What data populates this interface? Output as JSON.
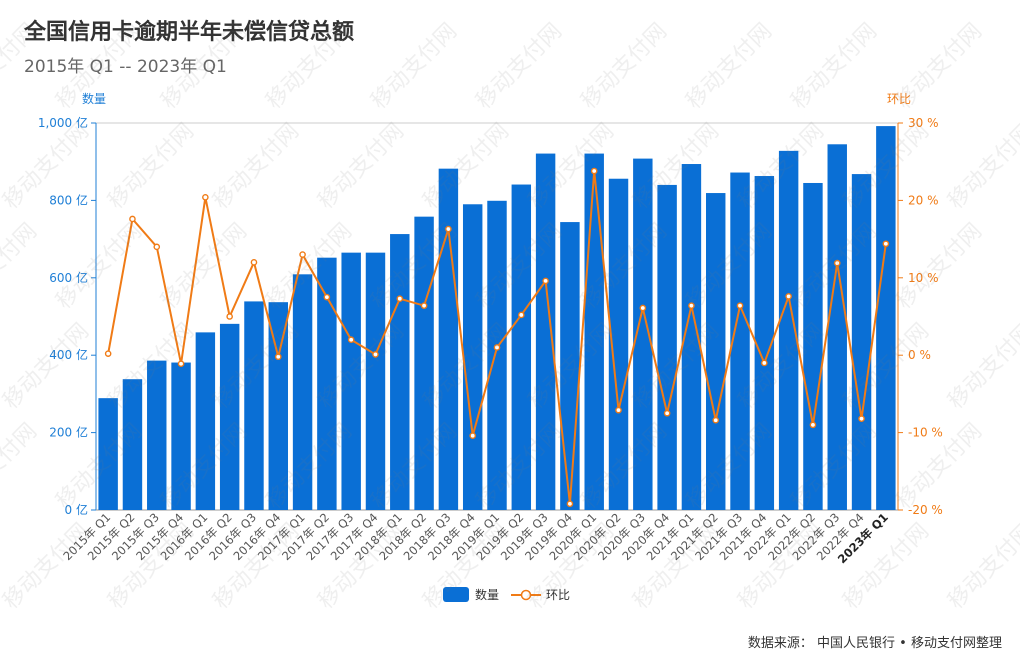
{
  "title": "全国信用卡逾期半年未偿信贷总额",
  "subtitle": "2015年 Q1 -- 2023年 Q1",
  "source": "数据来源：  中国人民银行 • 移动支付网整理",
  "watermark": "移动支付网",
  "colors": {
    "bar": "#0a6fd5",
    "line": "#f07b16",
    "left_axis": "#1f7fd6",
    "right_axis": "#f07b16"
  },
  "chart_data": {
    "type": "bar",
    "categories": [
      "2015年 Q1",
      "2015年 Q2",
      "2015年 Q3",
      "2015年 Q4",
      "2016年 Q1",
      "2016年 Q2",
      "2016年 Q3",
      "2016年 Q4",
      "2017年 Q1",
      "2017年 Q2",
      "2017年 Q3",
      "2017年 Q4",
      "2018年 Q1",
      "2018年 Q2",
      "2018年 Q3",
      "2018年 Q4",
      "2019年 Q1",
      "2019年 Q2",
      "2019年 Q3",
      "2019年 Q4",
      "2020年 Q1",
      "2020年 Q2",
      "2020年 Q3",
      "2020年 Q4",
      "2021年 Q1",
      "2021年 Q2",
      "2021年 Q3",
      "2021年 Q4",
      "2022年 Q1",
      "2022年 Q2",
      "2022年 Q3",
      "2022年 Q4",
      "2023年 Q1"
    ],
    "series": [
      {
        "name": "数量",
        "type": "bar",
        "axis": "left",
        "values": [
          289,
          338,
          386,
          381,
          459,
          481,
          539,
          537,
          609,
          652,
          665,
          665,
          713,
          758,
          882,
          790,
          799,
          841,
          921,
          744,
          921,
          856,
          908,
          840,
          894,
          819,
          872,
          863,
          928,
          845,
          945,
          868,
          992
        ]
      },
      {
        "name": "环比",
        "type": "line",
        "axis": "right",
        "values": [
          0.2,
          17.6,
          14.0,
          -1.1,
          20.4,
          5.0,
          12.0,
          -0.2,
          13.0,
          7.5,
          2.0,
          0.1,
          7.3,
          6.4,
          16.3,
          -10.4,
          1.0,
          5.2,
          9.6,
          -19.2,
          23.8,
          -7.1,
          6.1,
          -7.5,
          6.4,
          -8.4,
          6.4,
          -1.0,
          7.6,
          -9.0,
          11.9,
          -8.2,
          14.4
        ]
      }
    ],
    "y_left": {
      "label": "数量",
      "min": 0,
      "max": 1000,
      "ticks": [
        0,
        200,
        400,
        600,
        800,
        1000
      ],
      "tick_labels": [
        "0 亿",
        "200 亿",
        "400 亿",
        "600 亿",
        "800 亿",
        "1,000 亿"
      ]
    },
    "y_right": {
      "label": "环比",
      "min": -20,
      "max": 30,
      "ticks": [
        -20,
        -10,
        0,
        10,
        20,
        30
      ],
      "tick_labels": [
        "-20 %",
        "-10 %",
        "0 %",
        "10 %",
        "20 %",
        "30 %"
      ]
    },
    "legend": {
      "position": "bottom-center",
      "items": [
        "数量",
        "环比"
      ]
    },
    "grid": false
  }
}
